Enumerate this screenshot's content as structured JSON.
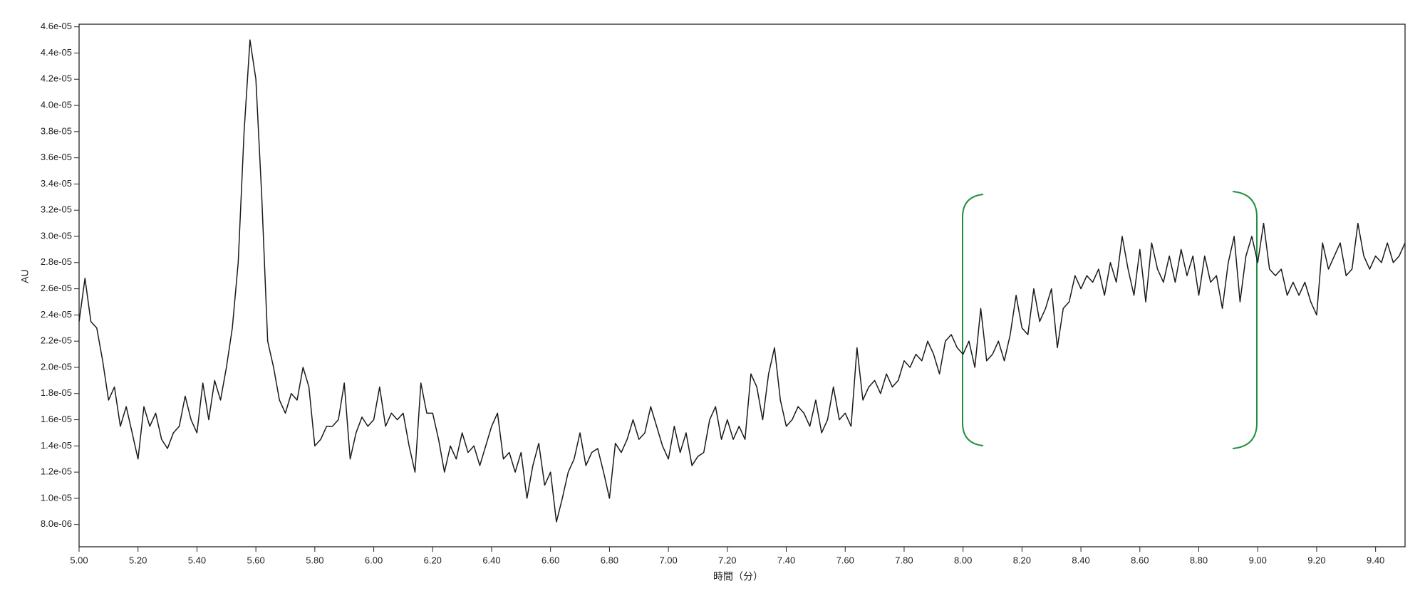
{
  "chart_data": {
    "type": "line",
    "xlabel": "時間（分）",
    "ylabel": "AU",
    "color": "#1a1a1a",
    "xlim": [
      5,
      9.5
    ],
    "ylim": [
      6.3e-06,
      4.62e-05
    ],
    "xticks": [
      {
        "value": 5,
        "label": "5.00"
      },
      {
        "value": 5.2,
        "label": "5.20"
      },
      {
        "value": 5.4,
        "label": "5.40"
      },
      {
        "value": 5.6,
        "label": "5.60"
      },
      {
        "value": 5.8,
        "label": "5.80"
      },
      {
        "value": 6,
        "label": "6.00"
      },
      {
        "value": 6.2,
        "label": "6.20"
      },
      {
        "value": 6.4,
        "label": "6.40"
      },
      {
        "value": 6.6,
        "label": "6.60"
      },
      {
        "value": 6.8,
        "label": "6.80"
      },
      {
        "value": 7,
        "label": "7.00"
      },
      {
        "value": 7.2,
        "label": "7.20"
      },
      {
        "value": 7.4,
        "label": "7.40"
      },
      {
        "value": 7.6,
        "label": "7.60"
      },
      {
        "value": 7.8,
        "label": "7.80"
      },
      {
        "value": 8,
        "label": "8.00"
      },
      {
        "value": 8.2,
        "label": "8.20"
      },
      {
        "value": 8.4,
        "label": "8.40"
      },
      {
        "value": 8.6,
        "label": "8.60"
      },
      {
        "value": 8.8,
        "label": "8.80"
      },
      {
        "value": 9,
        "label": "9.00"
      },
      {
        "value": 9.2,
        "label": "9.20"
      },
      {
        "value": 9.4,
        "label": "9.40"
      }
    ],
    "yticks": [
      {
        "value": 8e-06,
        "label": "8.0e-06"
      },
      {
        "value": 1e-05,
        "label": "1.0e-05"
      },
      {
        "value": 1.2e-05,
        "label": "1.2e-05"
      },
      {
        "value": 1.4e-05,
        "label": "1.4e-05"
      },
      {
        "value": 1.6e-05,
        "label": "1.6e-05"
      },
      {
        "value": 1.8e-05,
        "label": "1.8e-05"
      },
      {
        "value": 2e-05,
        "label": "2.0e-05"
      },
      {
        "value": 2.2e-05,
        "label": "2.2e-05"
      },
      {
        "value": 2.4e-05,
        "label": "2.4e-05"
      },
      {
        "value": 2.6e-05,
        "label": "2.6e-05"
      },
      {
        "value": 2.8e-05,
        "label": "2.8e-05"
      },
      {
        "value": 3e-05,
        "label": "3.0e-05"
      },
      {
        "value": 3.2e-05,
        "label": "3.2e-05"
      },
      {
        "value": 3.4e-05,
        "label": "3.4e-05"
      },
      {
        "value": 3.6e-05,
        "label": "3.6e-05"
      },
      {
        "value": 3.8e-05,
        "label": "3.8e-05"
      },
      {
        "value": 4e-05,
        "label": "4.0e-05"
      },
      {
        "value": 4.2e-05,
        "label": "4.2e-05"
      },
      {
        "value": 4.4e-05,
        "label": "4.4e-05"
      },
      {
        "value": 4.6e-05,
        "label": "4.6e-05"
      }
    ],
    "x": [
      5,
      5.02,
      5.04,
      5.06,
      5.08,
      5.1,
      5.12,
      5.14,
      5.16,
      5.18,
      5.2,
      5.22,
      5.24,
      5.26,
      5.28,
      5.3,
      5.32,
      5.34,
      5.36,
      5.38,
      5.4,
      5.42,
      5.44,
      5.46,
      5.48,
      5.5,
      5.52,
      5.54,
      5.56,
      5.58,
      5.6,
      5.62,
      5.64,
      5.66,
      5.68,
      5.7,
      5.72,
      5.74,
      5.76,
      5.78,
      5.8,
      5.82,
      5.84,
      5.86,
      5.88,
      5.9,
      5.92,
      5.94,
      5.96,
      5.98,
      6,
      6.02,
      6.04,
      6.06,
      6.08,
      6.1,
      6.12,
      6.14,
      6.16,
      6.18,
      6.2,
      6.22,
      6.24,
      6.26,
      6.28,
      6.3,
      6.32,
      6.34,
      6.36,
      6.38,
      6.4,
      6.42,
      6.44,
      6.46,
      6.48,
      6.5,
      6.52,
      6.54,
      6.56,
      6.58,
      6.6,
      6.62,
      6.64,
      6.66,
      6.68,
      6.7,
      6.72,
      6.74,
      6.76,
      6.78,
      6.8,
      6.82,
      6.84,
      6.86,
      6.88,
      6.9,
      6.92,
      6.94,
      6.96,
      6.98,
      7,
      7.02,
      7.04,
      7.06,
      7.08,
      7.1,
      7.12,
      7.14,
      7.16,
      7.18,
      7.2,
      7.22,
      7.24,
      7.26,
      7.28,
      7.3,
      7.32,
      7.34,
      7.36,
      7.38,
      7.4,
      7.42,
      7.44,
      7.46,
      7.48,
      7.5,
      7.52,
      7.54,
      7.56,
      7.58,
      7.6,
      7.62,
      7.64,
      7.66,
      7.68,
      7.7,
      7.72,
      7.74,
      7.76,
      7.78,
      7.8,
      7.82,
      7.84,
      7.86,
      7.88,
      7.9,
      7.92,
      7.94,
      7.96,
      7.98,
      8,
      8.02,
      8.04,
      8.06,
      8.08,
      8.1,
      8.12,
      8.14,
      8.16,
      8.18,
      8.2,
      8.22,
      8.24,
      8.26,
      8.28,
      8.3,
      8.32,
      8.34,
      8.36,
      8.38,
      8.4,
      8.42,
      8.44,
      8.46,
      8.48,
      8.5,
      8.52,
      8.54,
      8.56,
      8.58,
      8.6,
      8.62,
      8.64,
      8.66,
      8.68,
      8.7,
      8.72,
      8.74,
      8.76,
      8.78,
      8.8,
      8.82,
      8.84,
      8.86,
      8.88,
      8.9,
      8.92,
      8.94,
      8.96,
      8.98,
      9,
      9.02,
      9.04,
      9.06,
      9.08,
      9.1,
      9.12,
      9.14,
      9.16,
      9.18,
      9.2,
      9.22,
      9.24,
      9.26,
      9.28,
      9.3,
      9.32,
      9.34,
      9.36,
      9.38,
      9.4,
      9.42,
      9.44,
      9.46,
      9.48,
      9.5
    ],
    "values": [
      2.35e-05,
      2.68e-05,
      2.35e-05,
      2.3e-05,
      2.05e-05,
      1.75e-05,
      1.85e-05,
      1.55e-05,
      1.7e-05,
      1.5e-05,
      1.3e-05,
      1.7e-05,
      1.55e-05,
      1.65e-05,
      1.45e-05,
      1.38e-05,
      1.5e-05,
      1.55e-05,
      1.78e-05,
      1.6e-05,
      1.5e-05,
      1.88e-05,
      1.6e-05,
      1.9e-05,
      1.75e-05,
      2e-05,
      2.3e-05,
      2.8e-05,
      3.8e-05,
      4.5e-05,
      4.2e-05,
      3.3e-05,
      2.2e-05,
      2e-05,
      1.75e-05,
      1.65e-05,
      1.8e-05,
      1.75e-05,
      2e-05,
      1.85e-05,
      1.4e-05,
      1.45e-05,
      1.55e-05,
      1.55e-05,
      1.6e-05,
      1.88e-05,
      1.3e-05,
      1.5e-05,
      1.62e-05,
      1.55e-05,
      1.6e-05,
      1.85e-05,
      1.55e-05,
      1.65e-05,
      1.6e-05,
      1.65e-05,
      1.4e-05,
      1.2e-05,
      1.88e-05,
      1.65e-05,
      1.65e-05,
      1.45e-05,
      1.2e-05,
      1.4e-05,
      1.3e-05,
      1.5e-05,
      1.35e-05,
      1.4e-05,
      1.25e-05,
      1.4e-05,
      1.55e-05,
      1.65e-05,
      1.3e-05,
      1.35e-05,
      1.2e-05,
      1.35e-05,
      1e-05,
      1.25e-05,
      1.42e-05,
      1.1e-05,
      1.2e-05,
      8.2e-06,
      1e-05,
      1.2e-05,
      1.3e-05,
      1.5e-05,
      1.25e-05,
      1.35e-05,
      1.38e-05,
      1.2e-05,
      1e-05,
      1.42e-05,
      1.35e-05,
      1.45e-05,
      1.6e-05,
      1.45e-05,
      1.5e-05,
      1.7e-05,
      1.55e-05,
      1.4e-05,
      1.3e-05,
      1.55e-05,
      1.35e-05,
      1.5e-05,
      1.25e-05,
      1.32e-05,
      1.35e-05,
      1.6e-05,
      1.7e-05,
      1.45e-05,
      1.6e-05,
      1.45e-05,
      1.55e-05,
      1.45e-05,
      1.95e-05,
      1.85e-05,
      1.6e-05,
      1.95e-05,
      2.15e-05,
      1.75e-05,
      1.55e-05,
      1.6e-05,
      1.7e-05,
      1.65e-05,
      1.55e-05,
      1.75e-05,
      1.5e-05,
      1.6e-05,
      1.85e-05,
      1.6e-05,
      1.65e-05,
      1.55e-05,
      2.15e-05,
      1.75e-05,
      1.85e-05,
      1.9e-05,
      1.8e-05,
      1.95e-05,
      1.85e-05,
      1.9e-05,
      2.05e-05,
      2e-05,
      2.1e-05,
      2.05e-05,
      2.2e-05,
      2.1e-05,
      1.95e-05,
      2.2e-05,
      2.25e-05,
      2.15e-05,
      2.1e-05,
      2.2e-05,
      2e-05,
      2.45e-05,
      2.05e-05,
      2.1e-05,
      2.2e-05,
      2.05e-05,
      2.25e-05,
      2.55e-05,
      2.3e-05,
      2.25e-05,
      2.6e-05,
      2.35e-05,
      2.45e-05,
      2.6e-05,
      2.15e-05,
      2.45e-05,
      2.5e-05,
      2.7e-05,
      2.6e-05,
      2.7e-05,
      2.65e-05,
      2.75e-05,
      2.55e-05,
      2.8e-05,
      2.65e-05,
      3e-05,
      2.75e-05,
      2.55e-05,
      2.9e-05,
      2.5e-05,
      2.95e-05,
      2.75e-05,
      2.65e-05,
      2.85e-05,
      2.65e-05,
      2.9e-05,
      2.7e-05,
      2.85e-05,
      2.55e-05,
      2.85e-05,
      2.65e-05,
      2.7e-05,
      2.45e-05,
      2.8e-05,
      3e-05,
      2.5e-05,
      2.85e-05,
      3e-05,
      2.8e-05,
      3.1e-05,
      2.75e-05,
      2.7e-05,
      2.75e-05,
      2.55e-05,
      2.65e-05,
      2.55e-05,
      2.65e-05,
      2.5e-05,
      2.4e-05,
      2.95e-05,
      2.75e-05,
      2.85e-05,
      2.95e-05,
      2.7e-05,
      2.75e-05,
      3.1e-05,
      2.85e-05,
      2.75e-05,
      2.85e-05,
      2.8e-05,
      2.95e-05,
      2.8e-05,
      2.85e-05,
      2.95e-05
    ]
  }
}
